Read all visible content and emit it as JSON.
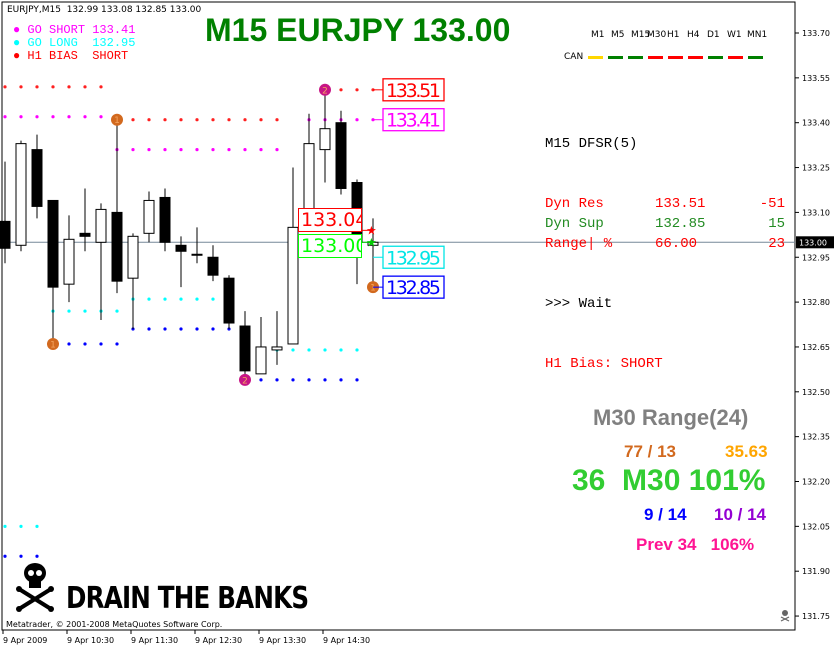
{
  "header": {
    "symbol_info": "EURJPY,M15  132.99 133.08 132.85 133.00",
    "title": "M15 EURJPY 133.00",
    "title_color": "#008000",
    "signals": [
      {
        "label": "GO SHORT 133.41",
        "color": "#ff00ff"
      },
      {
        "label": "GO LONG  132.95",
        "color": "#00ffff"
      },
      {
        "label": "H1 BIAS  SHORT",
        "color": "#ff0000"
      }
    ]
  },
  "timeframes": {
    "labels": [
      "M1",
      "M5",
      "M15",
      "M30",
      "H1",
      "H4",
      "D1",
      "W1",
      "MN1"
    ],
    "row_label": "CAN",
    "colors": [
      "#ffd700",
      "#008000",
      "#008000",
      "#ff0000",
      "#ff0000",
      "#ff0000",
      "#008000",
      "#ff0000",
      "#008000"
    ]
  },
  "dfsr": {
    "title": "M15 DFSR(5)",
    "rows": [
      {
        "label": "Dyn Res",
        "value": "133.51",
        "extra": "-51",
        "color": "#ff0000"
      },
      {
        "label": "Dyn Sup",
        "value": "132.85",
        "extra": "15",
        "color": "#228b22"
      },
      {
        "label": "Range| %",
        "value": "66.00",
        "extra": "23",
        "color": "#ff0000"
      }
    ],
    "action": ">>> Wait",
    "bias": "H1 Bias: SHORT"
  },
  "range_panel": {
    "title": "M30 Range(24)",
    "line1_left": "77 / 13",
    "line1_right": "35.63",
    "big": "36  M30 101%",
    "line3_left": "9 / 14",
    "line3_right": "10 / 14",
    "line4": "Prev 34   106%"
  },
  "level_labels": [
    {
      "text": "133.51",
      "price": 133.51,
      "color": "#ff0000"
    },
    {
      "text": "133.41",
      "price": 133.41,
      "color": "#ff00ff"
    },
    {
      "text": "132.95",
      "price": 132.95,
      "color": "#00e5e5"
    },
    {
      "text": "132.85",
      "price": 132.85,
      "color": "#0000ff"
    }
  ],
  "mid_labels": [
    {
      "text": "133.04",
      "color": "#ff0000"
    },
    {
      "text": "133.00",
      "color": "#00ff00"
    }
  ],
  "logo": "DRAIN THE BANKS",
  "copyright": "Metatrader, © 2001-2008 MetaQuotes Software Corp.",
  "current_price_label": "133.00",
  "chart_data": {
    "type": "candlestick",
    "symbol": "EURJPY",
    "timeframe": "M15",
    "ylim": [
      131.72,
      133.8
    ],
    "y_ticks": [
      "133.70",
      "133.55",
      "133.40",
      "133.25",
      "133.10",
      "132.95",
      "132.80",
      "132.65",
      "132.50",
      "132.35",
      "132.20",
      "132.05",
      "131.90",
      "131.75"
    ],
    "x_ticks": [
      "9 Apr 2009",
      "9 Apr 10:30",
      "9 Apr 11:30",
      "9 Apr 12:30",
      "9 Apr 13:30",
      "9 Apr 14:30"
    ],
    "current_price": 133.0,
    "candles": [
      {
        "o": 133.07,
        "h": 133.27,
        "l": 132.93,
        "c": 132.98
      },
      {
        "o": 132.99,
        "h": 133.34,
        "l": 132.97,
        "c": 133.33
      },
      {
        "o": 133.31,
        "h": 133.36,
        "l": 133.08,
        "c": 133.12
      },
      {
        "o": 133.14,
        "h": 133.14,
        "l": 132.66,
        "c": 132.85
      },
      {
        "o": 132.86,
        "h": 133.09,
        "l": 132.8,
        "c": 133.01
      },
      {
        "o": 133.03,
        "h": 133.18,
        "l": 132.97,
        "c": 133.02
      },
      {
        "o": 133.0,
        "h": 133.13,
        "l": 132.74,
        "c": 133.11
      },
      {
        "o": 133.1,
        "h": 133.41,
        "l": 132.83,
        "c": 132.87
      },
      {
        "o": 132.88,
        "h": 133.03,
        "l": 132.71,
        "c": 133.02
      },
      {
        "o": 133.03,
        "h": 133.17,
        "l": 133.0,
        "c": 133.14
      },
      {
        "o": 133.15,
        "h": 133.18,
        "l": 132.97,
        "c": 133.0
      },
      {
        "o": 132.99,
        "h": 133.02,
        "l": 132.85,
        "c": 132.97
      },
      {
        "o": 132.96,
        "h": 133.05,
        "l": 132.93,
        "c": 132.96
      },
      {
        "o": 132.95,
        "h": 132.99,
        "l": 132.87,
        "c": 132.89
      },
      {
        "o": 132.88,
        "h": 132.89,
        "l": 132.71,
        "c": 132.73
      },
      {
        "o": 132.72,
        "h": 132.77,
        "l": 132.55,
        "c": 132.57
      },
      {
        "o": 132.56,
        "h": 132.75,
        "l": 132.56,
        "c": 132.65
      },
      {
        "o": 132.64,
        "h": 132.77,
        "l": 132.59,
        "c": 132.65
      },
      {
        "o": 132.66,
        "h": 133.25,
        "l": 132.66,
        "c": 133.05
      },
      {
        "o": 133.06,
        "h": 133.43,
        "l": 133.06,
        "c": 133.33
      },
      {
        "o": 133.31,
        "h": 133.51,
        "l": 133.2,
        "c": 133.38
      },
      {
        "o": 133.4,
        "h": 133.44,
        "l": 133.16,
        "c": 133.18
      },
      {
        "o": 133.2,
        "h": 133.21,
        "l": 132.86,
        "c": 133.0
      },
      {
        "o": 132.99,
        "h": 133.08,
        "l": 132.85,
        "c": 133.0
      }
    ],
    "dot_levels": [
      {
        "price": 133.52,
        "from": 0,
        "to": 6,
        "color": "#ff2020"
      },
      {
        "price": 133.42,
        "from": 0,
        "to": 6,
        "color": "#ff00ff"
      },
      {
        "price": 133.41,
        "from": 7,
        "to": 17,
        "color": "#ff2020"
      },
      {
        "price": 133.31,
        "from": 7,
        "to": 17,
        "color": "#ff00ff"
      },
      {
        "price": 132.77,
        "from": 3,
        "to": 7,
        "color": "#00ffff"
      },
      {
        "price": 132.66,
        "from": 4,
        "to": 7,
        "color": "#0000ff"
      },
      {
        "price": 132.81,
        "from": 8,
        "to": 14,
        "color": "#00ffff"
      },
      {
        "price": 132.71,
        "from": 8,
        "to": 14,
        "color": "#0000ff"
      },
      {
        "price": 132.64,
        "from": 16,
        "to": 22,
        "color": "#00ffff"
      },
      {
        "price": 132.54,
        "from": 16,
        "to": 22,
        "color": "#0000ff"
      },
      {
        "price": 133.51,
        "from": 21,
        "to": 23,
        "color": "#ff2020"
      },
      {
        "price": 133.41,
        "from": 19,
        "to": 23,
        "color": "#ff00ff"
      },
      {
        "price": 132.05,
        "from": 0,
        "to": 2,
        "color": "#00ffff"
      },
      {
        "price": 131.95,
        "from": 0,
        "to": 2,
        "color": "#0000ff"
      }
    ],
    "markers": [
      {
        "candle": 7,
        "price": 133.41,
        "label": "1",
        "color": "#d2691e"
      },
      {
        "candle": 3,
        "price": 132.66,
        "label": "1",
        "color": "#d2691e"
      },
      {
        "candle": 23,
        "price": 132.85,
        "label": "1",
        "color": "#d2691e"
      },
      {
        "candle": 20,
        "price": 133.51,
        "label": "2",
        "color": "#c71585"
      },
      {
        "candle": 15,
        "price": 132.54,
        "label": "2",
        "color": "#c71585"
      }
    ]
  }
}
